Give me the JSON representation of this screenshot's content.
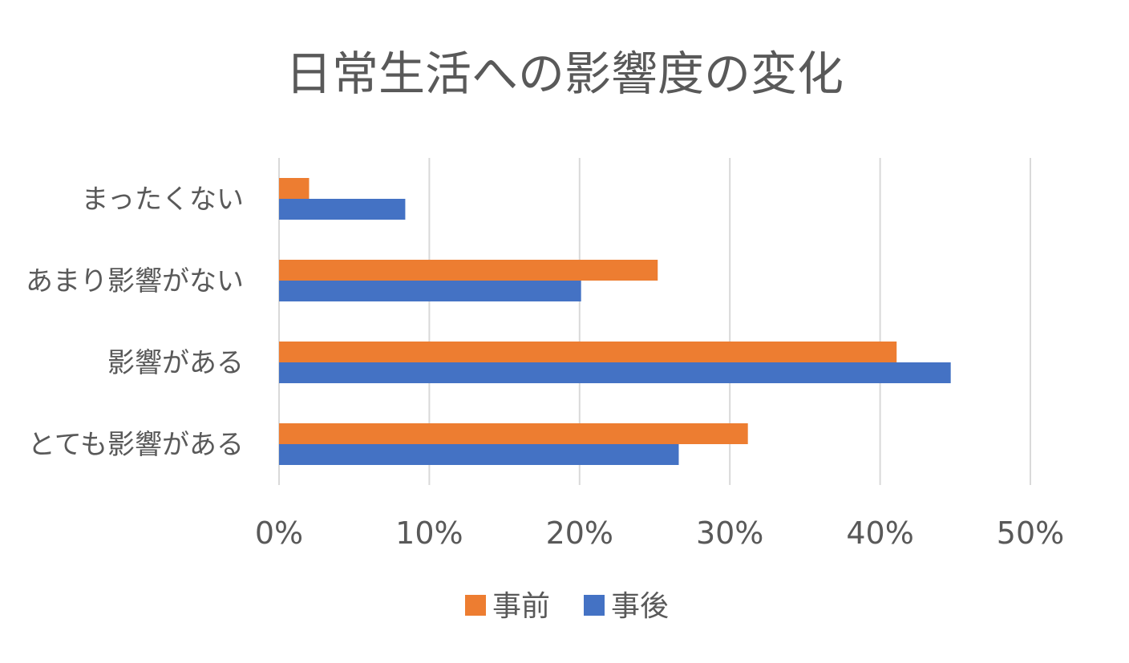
{
  "chart_data": {
    "type": "bar",
    "orientation": "horizontal",
    "title": "日常生活への影響度の変化",
    "categories": [
      "まったくない",
      "あまり影響がない",
      "影響がある",
      "とても影響がある"
    ],
    "series": [
      {
        "name": "事前",
        "color": "#ED7D31",
        "values": [
          2,
          25.2,
          41.1,
          31.2
        ]
      },
      {
        "name": "事後",
        "color": "#4472C4",
        "values": [
          8.4,
          20.1,
          44.7,
          26.6
        ]
      }
    ],
    "x_ticks": [
      "0%",
      "10%",
      "20%",
      "30%",
      "40%",
      "50%"
    ],
    "xlim": [
      0,
      50
    ],
    "grid": true,
    "legend_position": "bottom"
  }
}
